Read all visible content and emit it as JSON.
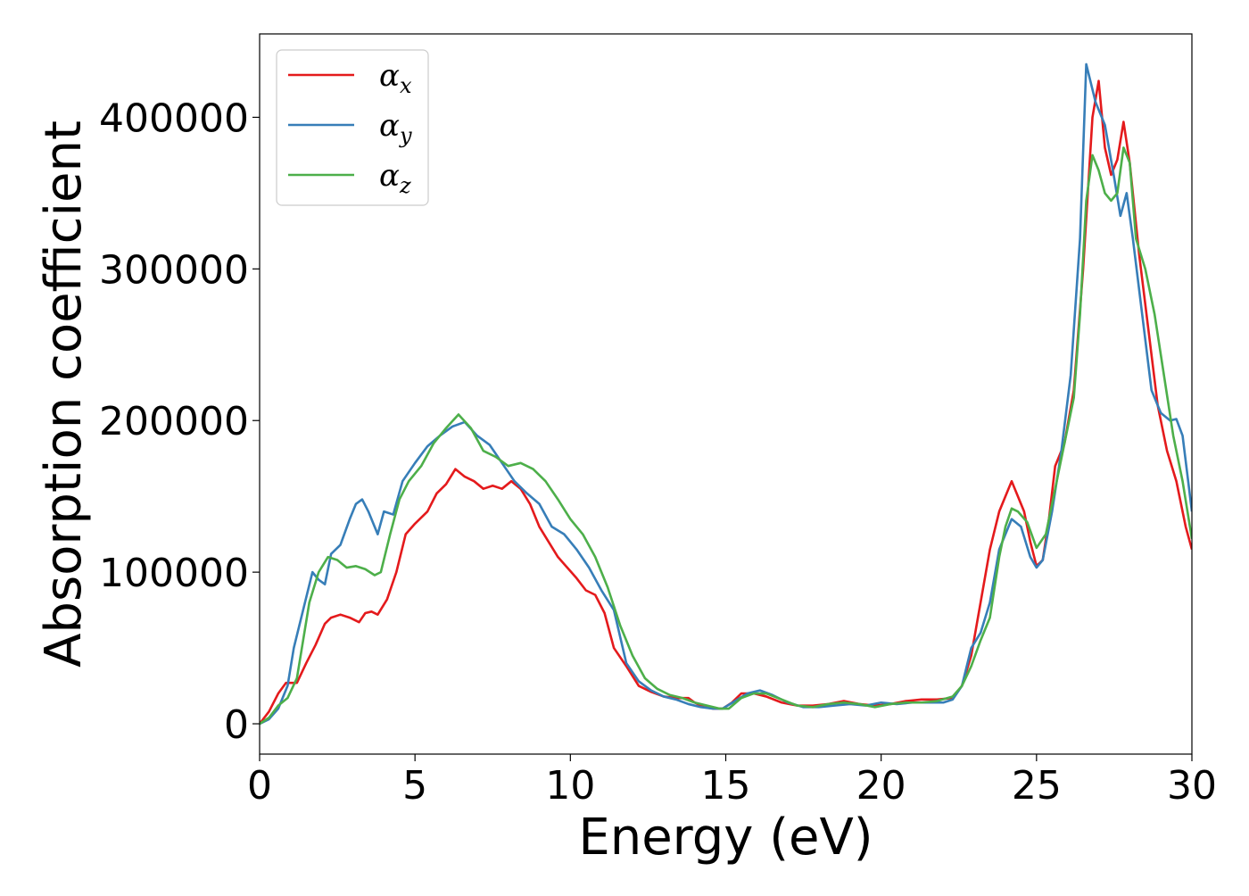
{
  "chart_data": {
    "type": "line",
    "title": "",
    "xlabel": "Energy (eV)",
    "ylabel": "Absorption coefficient",
    "xlim": [
      0,
      30
    ],
    "ylim": [
      -20000,
      455000
    ],
    "xticks": [
      0,
      5,
      10,
      15,
      20,
      25,
      30
    ],
    "xtick_labels": [
      "0",
      "5",
      "10",
      "15",
      "20",
      "25",
      "30"
    ],
    "yticks": [
      0,
      100000,
      200000,
      300000,
      400000
    ],
    "ytick_labels": [
      "0",
      "100000",
      "200000",
      "300000",
      "400000"
    ],
    "grid": false,
    "legend_position": "top-left",
    "series": [
      {
        "name": "αx",
        "legend_base": "α",
        "legend_sub": "x",
        "color": "#e41a1c",
        "x": [
          0,
          0.3,
          0.6,
          0.85,
          1.2,
          1.5,
          1.8,
          2.1,
          2.3,
          2.6,
          2.9,
          3.2,
          3.4,
          3.6,
          3.8,
          4.1,
          4.4,
          4.7,
          5.0,
          5.4,
          5.7,
          6.0,
          6.3,
          6.6,
          6.9,
          7.2,
          7.5,
          7.8,
          8.1,
          8.4,
          8.7,
          9.0,
          9.3,
          9.6,
          9.9,
          10.2,
          10.5,
          10.8,
          11.1,
          11.4,
          11.8,
          12.2,
          12.6,
          13.0,
          13.4,
          13.8,
          14.0,
          14.3,
          14.6,
          14.9,
          15.2,
          15.5,
          15.9,
          16.3,
          16.8,
          17.3,
          17.8,
          18.3,
          18.8,
          19.3,
          19.8,
          20.3,
          20.8,
          21.3,
          21.8,
          22.3,
          22.6,
          22.9,
          23.2,
          23.5,
          23.8,
          24.0,
          24.2,
          24.4,
          24.6,
          24.8,
          25.0,
          25.2,
          25.4,
          25.6,
          25.9,
          26.2,
          26.5,
          26.8,
          27.0,
          27.2,
          27.4,
          27.6,
          27.8,
          28.0,
          28.3,
          28.6,
          28.9,
          29.2,
          29.5,
          29.8,
          30.0
        ],
        "y": [
          0,
          8000,
          20000,
          27000,
          27000,
          40000,
          52000,
          66000,
          70000,
          72000,
          70000,
          67000,
          73000,
          74000,
          72000,
          82000,
          100000,
          125000,
          132000,
          140000,
          152000,
          158000,
          168000,
          163000,
          160000,
          155000,
          157000,
          155000,
          160000,
          155000,
          145000,
          130000,
          120000,
          110000,
          103000,
          96000,
          88000,
          85000,
          73000,
          50000,
          38000,
          25000,
          21000,
          18000,
          17000,
          17000,
          14000,
          11000,
          10000,
          10000,
          14000,
          20000,
          20000,
          18000,
          14000,
          12000,
          12000,
          13000,
          15000,
          13000,
          12000,
          13000,
          15000,
          16000,
          16000,
          17000,
          25000,
          45000,
          80000,
          115000,
          140000,
          150000,
          160000,
          150000,
          140000,
          120000,
          104000,
          108000,
          135000,
          170000,
          185000,
          220000,
          300000,
          400000,
          424000,
          380000,
          362000,
          372000,
          397000,
          370000,
          310000,
          260000,
          210000,
          180000,
          160000,
          130000,
          115000
        ]
      },
      {
        "name": "αy",
        "legend_base": "α",
        "legend_sub": "y",
        "color": "#377eb8",
        "x": [
          0,
          0.3,
          0.6,
          0.9,
          1.1,
          1.4,
          1.7,
          1.9,
          2.1,
          2.3,
          2.6,
          2.9,
          3.1,
          3.3,
          3.5,
          3.8,
          4.0,
          4.3,
          4.6,
          5.0,
          5.4,
          5.8,
          6.2,
          6.6,
          7.0,
          7.4,
          7.8,
          8.2,
          8.6,
          9.0,
          9.4,
          9.8,
          10.2,
          10.6,
          11.0,
          11.4,
          11.8,
          12.2,
          12.6,
          13.0,
          13.4,
          13.8,
          14.2,
          14.6,
          14.9,
          15.3,
          15.7,
          16.1,
          16.5,
          17.0,
          17.5,
          18.0,
          18.5,
          19.0,
          19.5,
          20.0,
          20.5,
          21.0,
          21.5,
          22.0,
          22.3,
          22.6,
          22.9,
          23.2,
          23.5,
          23.8,
          24.0,
          24.2,
          24.5,
          24.8,
          25.0,
          25.2,
          25.5,
          25.8,
          26.1,
          26.4,
          26.6,
          26.9,
          27.2,
          27.5,
          27.7,
          27.9,
          28.1,
          28.4,
          28.7,
          29.0,
          29.3,
          29.5,
          29.7,
          30.0
        ],
        "y": [
          0,
          3000,
          10000,
          25000,
          50000,
          75000,
          100000,
          95000,
          92000,
          112000,
          118000,
          135000,
          145000,
          148000,
          140000,
          125000,
          140000,
          138000,
          160000,
          172000,
          183000,
          190000,
          196000,
          199000,
          190000,
          184000,
          172000,
          160000,
          152000,
          145000,
          130000,
          125000,
          115000,
          103000,
          88000,
          75000,
          40000,
          28000,
          22000,
          18000,
          16000,
          13000,
          11000,
          10000,
          10000,
          15000,
          20000,
          22000,
          19000,
          14000,
          11000,
          11000,
          12000,
          13000,
          12000,
          14000,
          13000,
          14000,
          14000,
          14000,
          16000,
          25000,
          50000,
          60000,
          80000,
          115000,
          125000,
          135000,
          130000,
          110000,
          103000,
          108000,
          140000,
          180000,
          230000,
          320000,
          435000,
          410000,
          395000,
          360000,
          335000,
          350000,
          320000,
          270000,
          220000,
          205000,
          200000,
          201000,
          190000,
          140000
        ]
      },
      {
        "name": "αz",
        "legend_base": "α",
        "legend_sub": "z",
        "color": "#4daf4a",
        "x": [
          0,
          0.3,
          0.6,
          0.9,
          1.2,
          1.4,
          1.6,
          1.9,
          2.2,
          2.5,
          2.8,
          3.1,
          3.4,
          3.7,
          3.9,
          4.2,
          4.5,
          4.8,
          5.2,
          5.6,
          6.0,
          6.4,
          6.8,
          7.2,
          7.6,
          8.0,
          8.4,
          8.8,
          9.2,
          9.6,
          10.0,
          10.4,
          10.8,
          11.2,
          11.6,
          12.0,
          12.4,
          12.8,
          13.2,
          13.6,
          14.0,
          14.4,
          14.8,
          15.1,
          15.5,
          15.9,
          16.3,
          16.8,
          17.3,
          17.8,
          18.3,
          18.8,
          19.3,
          19.8,
          20.3,
          20.8,
          21.3,
          21.8,
          22.3,
          22.6,
          22.9,
          23.2,
          23.5,
          23.8,
          24.0,
          24.2,
          24.4,
          24.7,
          25.0,
          25.3,
          25.6,
          25.9,
          26.2,
          26.4,
          26.6,
          26.8,
          27.0,
          27.2,
          27.4,
          27.6,
          27.8,
          28.0,
          28.2,
          28.5,
          28.8,
          29.1,
          29.4,
          29.7,
          30.0
        ],
        "y": [
          0,
          4000,
          12000,
          17000,
          30000,
          55000,
          80000,
          100000,
          110000,
          108000,
          103000,
          104000,
          102000,
          98000,
          100000,
          125000,
          148000,
          160000,
          170000,
          185000,
          195000,
          204000,
          195000,
          180000,
          176000,
          170000,
          172000,
          168000,
          160000,
          148000,
          135000,
          125000,
          110000,
          90000,
          65000,
          45000,
          30000,
          23000,
          19000,
          17000,
          14000,
          12000,
          10000,
          10000,
          17000,
          20000,
          20000,
          16000,
          12000,
          11000,
          13000,
          14000,
          13000,
          11000,
          13000,
          14000,
          14000,
          15000,
          18000,
          25000,
          38000,
          55000,
          70000,
          110000,
          130000,
          142000,
          140000,
          133000,
          116000,
          125000,
          155000,
          185000,
          215000,
          270000,
          345000,
          375000,
          365000,
          350000,
          345000,
          350000,
          380000,
          370000,
          320000,
          300000,
          270000,
          230000,
          190000,
          160000,
          122000
        ]
      }
    ]
  }
}
